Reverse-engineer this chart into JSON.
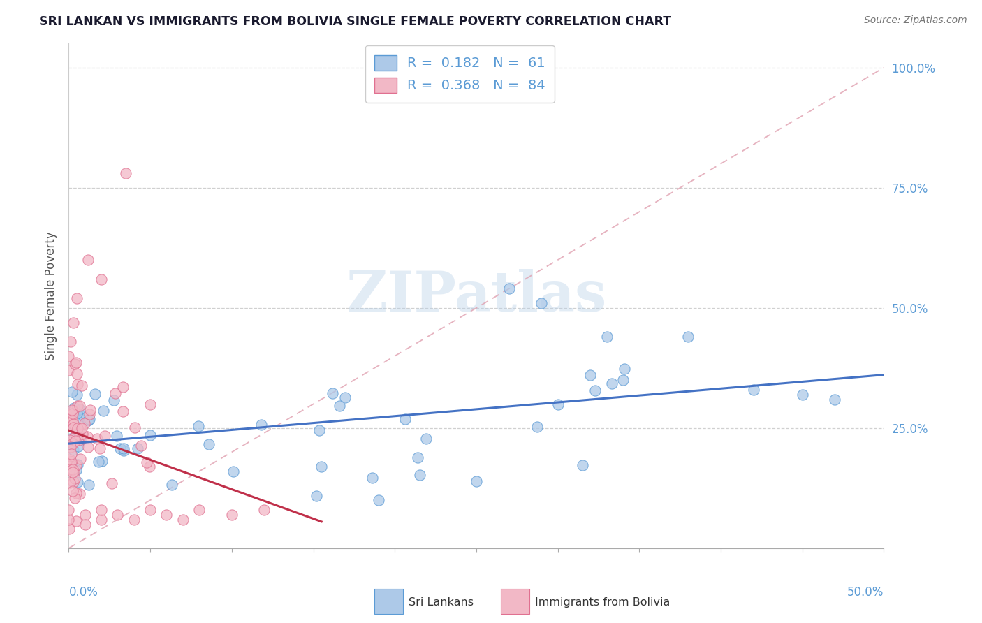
{
  "title": "SRI LANKAN VS IMMIGRANTS FROM BOLIVIA SINGLE FEMALE POVERTY CORRELATION CHART",
  "source": "Source: ZipAtlas.com",
  "ylabel": "Single Female Poverty",
  "xlim": [
    0.0,
    0.5
  ],
  "ylim": [
    0.0,
    1.05
  ],
  "ytick_vals": [
    0.25,
    0.5,
    0.75,
    1.0
  ],
  "ytick_labels": [
    "25.0%",
    "50.0%",
    "75.0%",
    "100.0%"
  ],
  "legend_line1": "R =  0.182   N =  61",
  "legend_line2": "R =  0.368   N =  84",
  "sri_lanka_face": "#adc9e8",
  "sri_lanka_edge": "#5b9bd5",
  "bolivia_face": "#f2b8c6",
  "bolivia_edge": "#e07090",
  "sri_line_color": "#4472c4",
  "bol_line_color": "#c0304a",
  "diag_color": "#e0a0b0",
  "grid_color": "#d0d0d0",
  "tick_color": "#5b9bd5",
  "watermark_color": "#b8d0e8",
  "watermark_alpha": 0.4,
  "bottom_legend_labels": [
    "Sri Lankans",
    "Immigrants from Bolivia"
  ]
}
